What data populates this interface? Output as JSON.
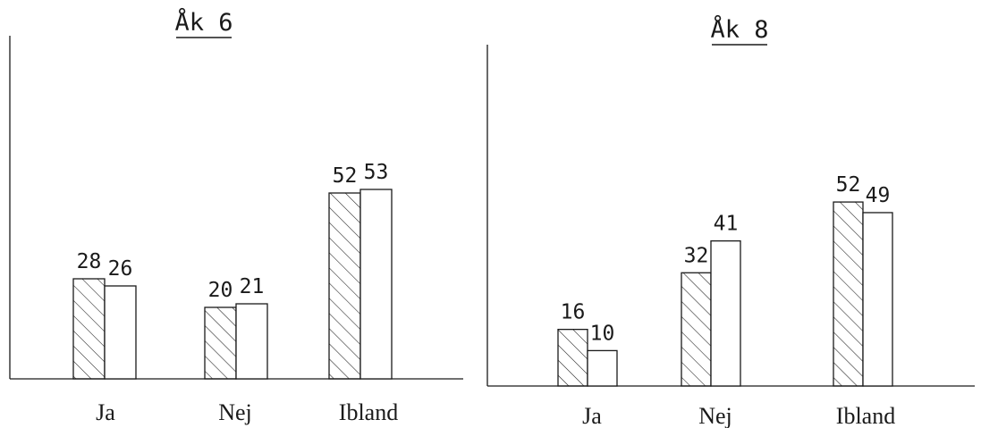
{
  "colors": {
    "ink": "#1a1a1a",
    "background": "#ffffff"
  },
  "chart_data": [
    {
      "type": "bar",
      "title": "Åk 6",
      "categories": [
        "Ja",
        "Nej",
        "Ibland"
      ],
      "series": [
        {
          "pattern": "hatched",
          "values": [
            28,
            20,
            52
          ]
        },
        {
          "pattern": "open",
          "values": [
            26,
            21,
            53
          ]
        }
      ],
      "ylim": [
        0,
        100
      ],
      "grid": false,
      "legend": "none"
    },
    {
      "type": "bar",
      "title": "Åk 8",
      "categories": [
        "Ja",
        "Nej",
        "Ibland"
      ],
      "series": [
        {
          "pattern": "hatched",
          "values": [
            16,
            32,
            52
          ]
        },
        {
          "pattern": "open",
          "values": [
            10,
            41,
            49
          ]
        }
      ],
      "ylim": [
        0,
        100
      ],
      "grid": false,
      "legend": "none"
    }
  ]
}
